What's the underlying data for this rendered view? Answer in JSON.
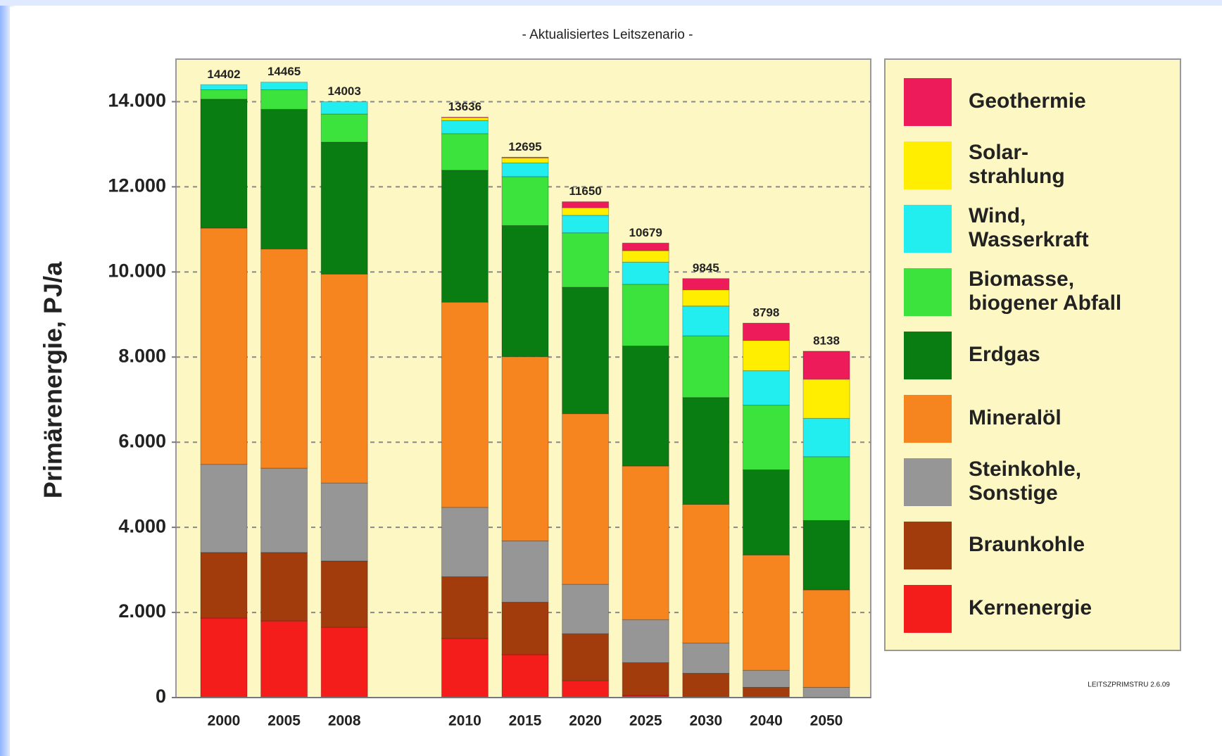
{
  "chart_data": {
    "type": "stacked_bar",
    "title": "- Aktualisiertes Leitszenario -",
    "y_label": "Primärenergie, PJ/a",
    "source": "LEITSZPRIMSTRU 2.6.09",
    "categories": [
      "2000",
      "2005",
      "2008",
      null,
      "2010",
      "2015",
      "2020",
      "2025",
      "2030",
      "2040",
      "2050"
    ],
    "totals": [
      14402,
      14465,
      14003,
      null,
      13636,
      12695,
      11650,
      10679,
      9845,
      8798,
      8138
    ],
    "series": [
      {
        "name": "Kernenergie",
        "color": "#f51c1c",
        "values": [
          1870,
          1800,
          1650,
          null,
          1390,
          1010,
          400,
          50,
          0,
          0,
          0
        ]
      },
      {
        "name": "Braunkohle",
        "color": "#a23c0c",
        "values": [
          1540,
          1610,
          1560,
          null,
          1450,
          1230,
          1100,
          770,
          570,
          240,
          0
        ]
      },
      {
        "name": "Steinkohle,\nSonstige",
        "color": "#969696",
        "values": [
          2070,
          1980,
          1830,
          null,
          1630,
          1440,
          1160,
          1010,
          710,
          400,
          240
        ]
      },
      {
        "name": "Mineralöl",
        "color": "#f7851f",
        "values": [
          5550,
          5150,
          4910,
          null,
          4820,
          4330,
          4010,
          3610,
          3260,
          2710,
          2290
        ]
      },
      {
        "name": "Erdgas",
        "color": "#0a7d12",
        "values": [
          3030,
          3280,
          3100,
          null,
          3100,
          3080,
          2970,
          2820,
          2510,
          2000,
          1630
        ]
      },
      {
        "name": "Biomasse,\nbiogener Abfall",
        "color": "#3de33d",
        "values": [
          220,
          460,
          660,
          null,
          860,
          1150,
          1280,
          1450,
          1450,
          1520,
          1500
        ]
      },
      {
        "name": "Wind,\nWasserkraft",
        "color": "#22eef0",
        "values": [
          120,
          180,
          290,
          null,
          310,
          320,
          410,
          520,
          700,
          810,
          900
        ]
      },
      {
        "name": "Solar-\nstrahlung",
        "color": "#ffee00",
        "values": [
          0,
          0,
          0,
          null,
          66,
          120,
          180,
          270,
          380,
          710,
          920
        ]
      },
      {
        "name": "Geothermie",
        "color": "#ee1b5a",
        "values": [
          0,
          0,
          0,
          null,
          10,
          15,
          140,
          179,
          265,
          408,
          658
        ]
      }
    ],
    "ylim": [
      0,
      15000
    ],
    "yticks": [
      0,
      {
        "value": 2000,
        "label": "2.000"
      },
      {
        "value": 4000,
        "label": "4.000"
      },
      {
        "value": 6000,
        "label": "6.000"
      },
      {
        "value": 8000,
        "label": "8.000"
      },
      {
        "value": 10000,
        "label": "10.000"
      },
      {
        "value": 12000,
        "label": "12.000"
      },
      {
        "value": 14000,
        "label": "14.000"
      }
    ],
    "grid": true
  }
}
